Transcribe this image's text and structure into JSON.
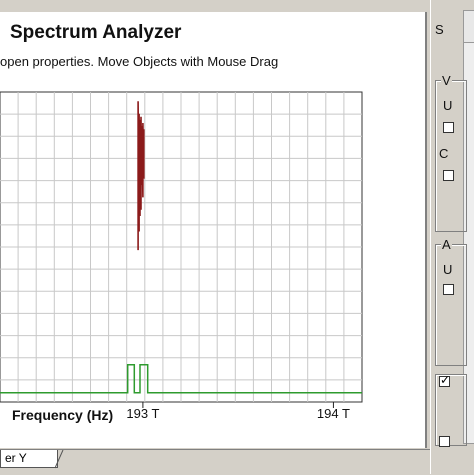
{
  "window": {
    "title": "Spectrum Analyzer",
    "hint": "open properties.  Move Objects with Mouse Drag"
  },
  "chart_data": {
    "type": "line",
    "xlabel": "Frequency (Hz)",
    "ylabel": "",
    "x_tick_labels": [
      "193 T",
      "194 T"
    ],
    "xlim": [
      192.25,
      194.15
    ],
    "ylim": [
      0,
      1
    ],
    "grid": true,
    "series": [
      {
        "color": "#8b1a1a",
        "x": [
          192.975,
          192.975,
          192.98,
          192.98,
          192.985,
          192.985,
          192.99,
          192.99,
          192.995,
          192.995,
          193.0,
          193.0,
          193.005,
          193.005
        ],
        "y": [
          0.49,
          0.97,
          0.55,
          0.93,
          0.6,
          0.91,
          0.62,
          0.92,
          0.7,
          0.89,
          0.66,
          0.9,
          0.72,
          0.88
        ]
      },
      {
        "color": "#2e9b2e",
        "x": [
          192.25,
          192.92,
          192.92,
          192.955,
          192.955,
          192.985,
          192.985,
          193.025,
          193.025,
          194.15
        ],
        "y": [
          0.03,
          0.03,
          0.12,
          0.12,
          0.03,
          0.03,
          0.12,
          0.12,
          0.03,
          0.03
        ]
      }
    ]
  },
  "tabs": {
    "active": "er Y"
  },
  "right_panel": {
    "top_label": "S",
    "group1_title": "V",
    "group1_label1": "U",
    "group1_label2": "C",
    "group2_title": "A",
    "group2_label1": "U"
  }
}
